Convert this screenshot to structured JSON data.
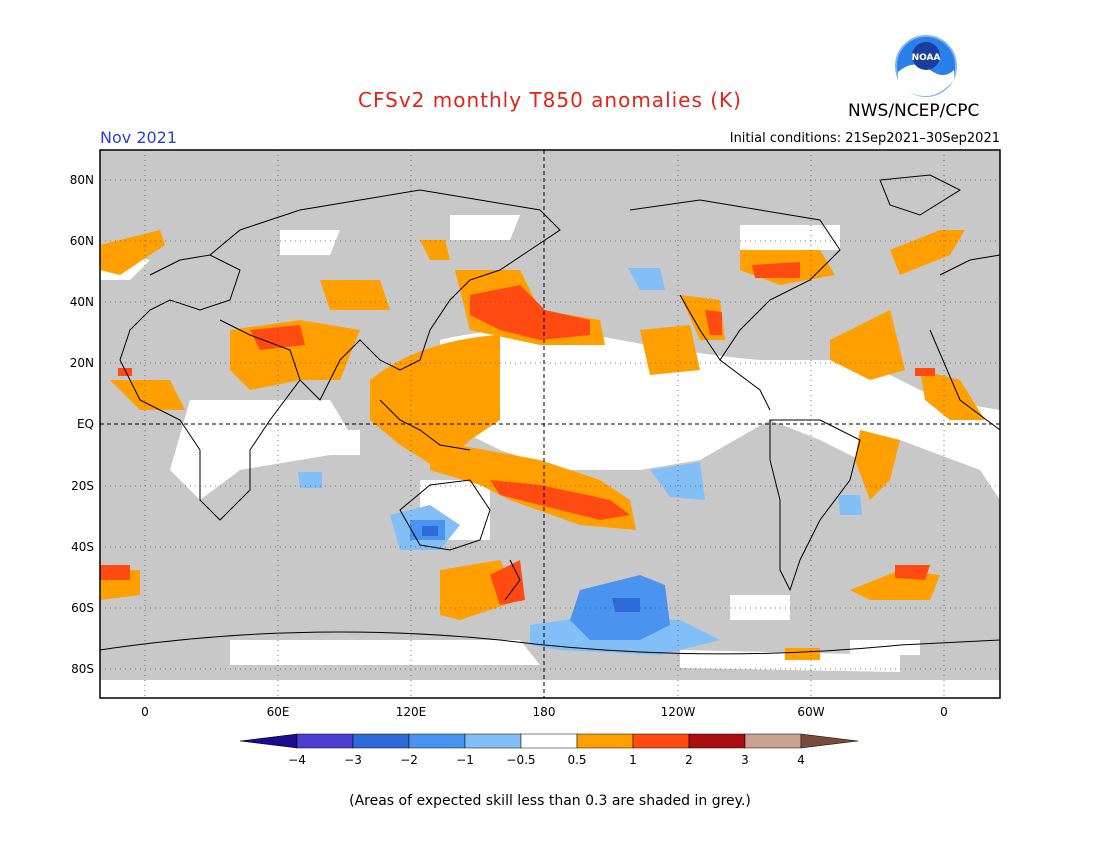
{
  "title": "CFSv2 monthly T850 anomalies (K)",
  "agency": "NWS/NCEP/CPC",
  "logo_text": "NOAA",
  "valid_month": "Nov 2021",
  "initial_conditions": "Initial conditions: 21Sep2021–30Sep2021",
  "lat_labels": [
    "80N",
    "60N",
    "40N",
    "20N",
    "EQ",
    "20S",
    "40S",
    "60S",
    "80S"
  ],
  "lon_labels": [
    "0",
    "60E",
    "120E",
    "180",
    "120W",
    "60W",
    "0"
  ],
  "colorbar": {
    "labels": [
      "−4",
      "−3",
      "−2",
      "−1",
      "−0.5",
      "0.5",
      "1",
      "2",
      "3",
      "4"
    ],
    "colors": [
      "#1a0a8c",
      "#4b3fd2",
      "#2f6ad9",
      "#4a94f0",
      "#82bff7",
      "#ffffff",
      "#ff9f00",
      "#ff4a12",
      "#aa0d10",
      "#caa192",
      "#7b4a3c"
    ]
  },
  "footnote": "(Areas of expected skill less than 0.3 are shaded in grey.)",
  "colors": {
    "grey_mask": "#c8c8c8",
    "title": "#e2231a",
    "month": "#2a3fd6"
  }
}
